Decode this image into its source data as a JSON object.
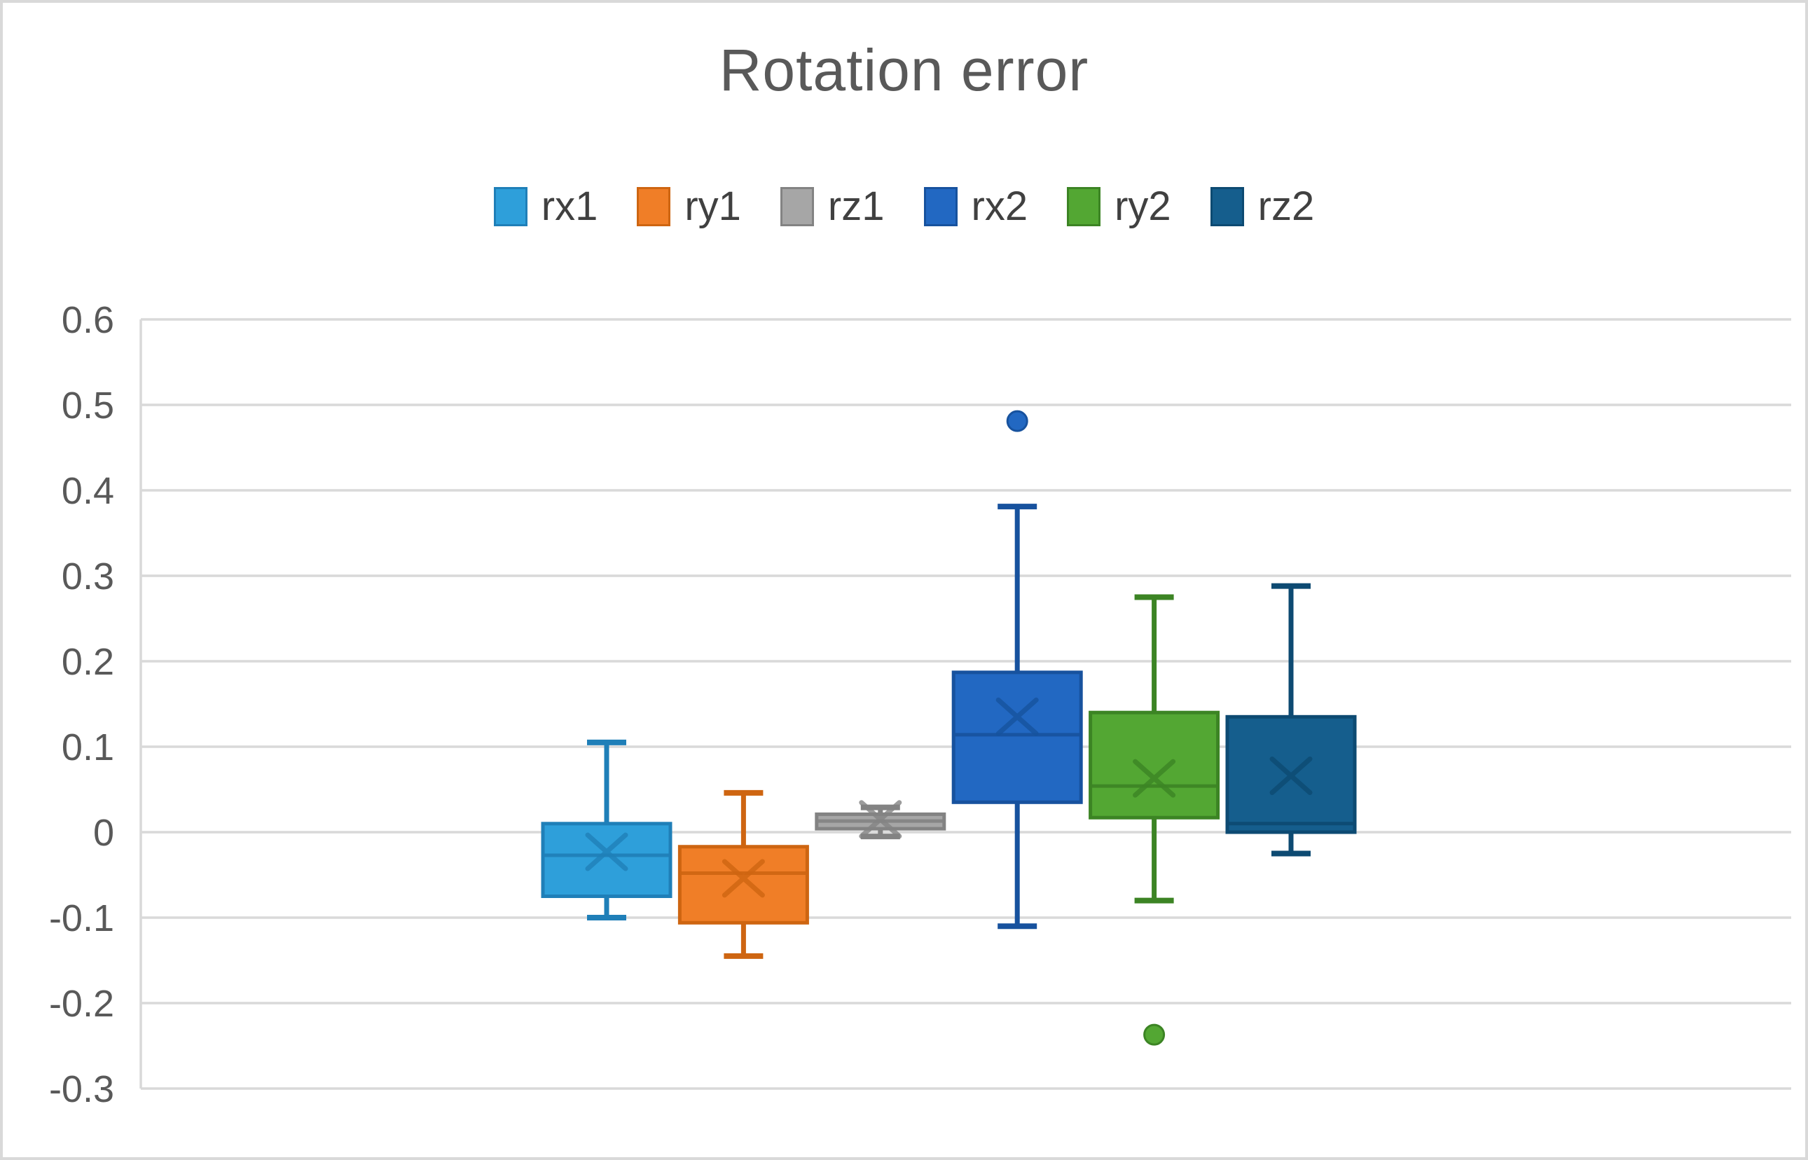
{
  "title": "Rotation error",
  "colors": {
    "background": "#FFFFFF",
    "card_border": "#D9D9D9",
    "gridline": "#D9D9D9",
    "axis_line": "#D9D9D9",
    "title_text": "#595959",
    "tick_text": "#595959",
    "legend_text": "#404040"
  },
  "chart_data": {
    "type": "boxplot",
    "title": "Rotation error",
    "categories": [
      "rx1",
      "ry1",
      "rz1",
      "rx2",
      "ry2",
      "rz2"
    ],
    "ylim": [
      -0.3,
      0.6
    ],
    "grid": true,
    "legend_position": "top",
    "xlabel": "",
    "ylabel": "",
    "y_ticks": [
      {
        "value": 0.6,
        "label": "0.6"
      },
      {
        "value": 0.5,
        "label": "0.5"
      },
      {
        "value": 0.4,
        "label": "0.4"
      },
      {
        "value": 0.3,
        "label": "0.3"
      },
      {
        "value": 0.2,
        "label": "0.2"
      },
      {
        "value": 0.1,
        "label": "0.1"
      },
      {
        "value": 0,
        "label": "0"
      },
      {
        "value": -0.1,
        "label": "-0.1"
      },
      {
        "value": -0.2,
        "label": "-0.2"
      },
      {
        "value": -0.3,
        "label": "-0.3"
      }
    ],
    "series": [
      {
        "name": "rx1",
        "color": "#2E9FDA",
        "border_color": "#1F7FB8",
        "whisker_low": -0.1,
        "q1": -0.075,
        "median": -0.027,
        "mean": -0.023,
        "q3": 0.01,
        "whisker_high": 0.105,
        "outliers": []
      },
      {
        "name": "ry1",
        "color": "#F07E27",
        "border_color": "#CE6511",
        "whisker_low": -0.145,
        "q1": -0.106,
        "median": -0.048,
        "mean": -0.054,
        "q3": -0.017,
        "whisker_high": 0.046,
        "outliers": []
      },
      {
        "name": "rz1",
        "color": "#A6A6A6",
        "border_color": "#838383",
        "whisker_low": -0.005,
        "q1": 0.004,
        "median": 0.013,
        "mean": 0.015,
        "q3": 0.021,
        "whisker_high": 0.029,
        "outliers": []
      },
      {
        "name": "rx2",
        "color": "#2268C2",
        "border_color": "#17529E",
        "whisker_low": -0.11,
        "q1": 0.035,
        "median": 0.114,
        "mean": 0.135,
        "q3": 0.187,
        "whisker_high": 0.381,
        "outliers": [
          0.481
        ]
      },
      {
        "name": "ry2",
        "color": "#53A733",
        "border_color": "#3C8424",
        "whisker_low": -0.08,
        "q1": 0.017,
        "median": 0.054,
        "mean": 0.063,
        "q3": 0.14,
        "whisker_high": 0.275,
        "outliers": [
          -0.237
        ]
      },
      {
        "name": "rz2",
        "color": "#155E8D",
        "border_color": "#0D4A72",
        "whisker_low": -0.025,
        "q1": 0.0,
        "median": 0.01,
        "mean": 0.066,
        "q3": 0.135,
        "whisker_high": 0.288,
        "outliers": []
      }
    ]
  }
}
